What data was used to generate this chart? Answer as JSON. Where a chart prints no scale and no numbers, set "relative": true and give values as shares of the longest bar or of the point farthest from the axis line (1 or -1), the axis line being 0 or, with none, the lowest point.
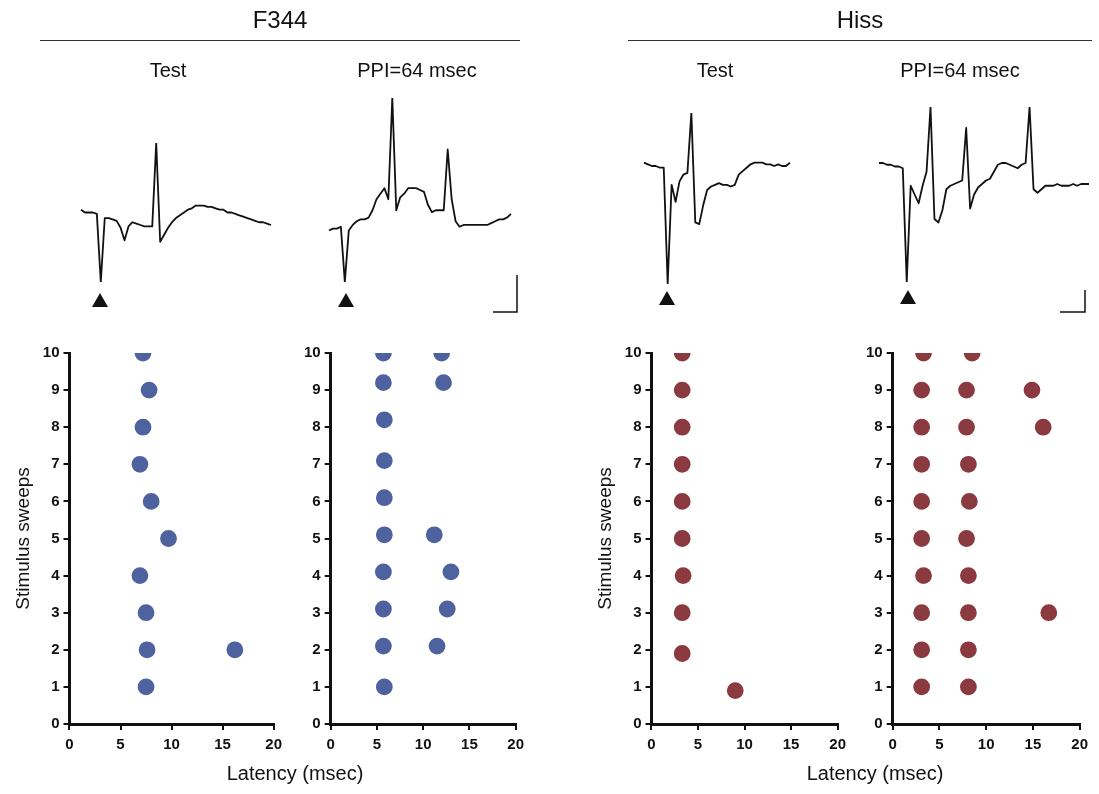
{
  "chart_data": [
    {
      "type": "line",
      "title": "Test",
      "annotations": [
        "F344"
      ],
      "relative": true,
      "marker": "none",
      "color": "#111111",
      "categories": [
        null,
        null,
        null,
        null,
        null,
        null,
        null,
        null,
        null,
        null,
        null,
        null,
        null,
        null,
        null,
        null,
        null,
        null,
        null,
        null,
        null,
        null,
        null,
        null,
        null,
        null,
        null,
        null,
        null,
        null,
        null,
        null,
        null,
        null,
        null,
        null,
        null,
        null,
        null,
        null,
        null,
        null,
        null,
        null,
        null,
        null,
        null,
        null,
        null
      ],
      "values": [
        0.52,
        0.5,
        0.5,
        0.5,
        0.49,
        0,
        0.46,
        0.46,
        0.45,
        0.44,
        0.39,
        0.3,
        0.4,
        0.43,
        0.42,
        0.41,
        0.4,
        0.4,
        0.4,
        1,
        0.29,
        0.34,
        0.39,
        0.43,
        0.46,
        0.48,
        0.5,
        0.52,
        0.53,
        0.55,
        0.55,
        0.55,
        0.54,
        0.54,
        0.53,
        0.52,
        0.52,
        0.5,
        0.5,
        0.49,
        0.48,
        0.47,
        0.46,
        0.45,
        0.44,
        0.43,
        0.43,
        0.42,
        0.41
      ]
    },
    {
      "type": "line",
      "title": "PPI=64 msec",
      "relative": true,
      "marker": "none",
      "color": "#111111",
      "categories": [
        null,
        null,
        null,
        null,
        null,
        null,
        null,
        null,
        null,
        null,
        null,
        null,
        null,
        null,
        null,
        null,
        null,
        null,
        null,
        null,
        null,
        null,
        null,
        null,
        null,
        null,
        null,
        null,
        null,
        null,
        null,
        null,
        null,
        null,
        null,
        null,
        null,
        null,
        null,
        null,
        null,
        null,
        null,
        null,
        null,
        null,
        null
      ],
      "values": [
        0.28,
        0.29,
        0.29,
        0.3,
        0,
        0.28,
        0.31,
        0.33,
        0.34,
        0.34,
        0.35,
        0.39,
        0.45,
        0.48,
        0.51,
        0.45,
        1,
        0.39,
        0.46,
        0.48,
        0.51,
        0.51,
        0.51,
        0.5,
        0.49,
        0.42,
        0.38,
        0.39,
        0.39,
        0.39,
        0.72,
        0.45,
        0.33,
        0.3,
        0.31,
        0.31,
        0.31,
        0.31,
        0.31,
        0.31,
        0.31,
        0.32,
        0.33,
        0.34,
        0.34,
        0.35,
        0.37
      ]
    },
    {
      "type": "line",
      "title": "Test",
      "annotations": [
        "Hiss"
      ],
      "relative": true,
      "marker": "none",
      "color": "#111111",
      "categories": [
        null,
        null,
        null,
        null,
        null,
        null,
        null,
        null,
        null,
        null,
        null,
        null,
        null,
        null,
        null,
        null,
        null,
        null,
        null,
        null,
        null,
        null,
        null,
        null,
        null,
        null,
        null,
        null,
        null,
        null,
        null,
        null,
        null,
        null,
        null,
        null,
        null,
        null
      ],
      "values": [
        0.71,
        0.7,
        0.69,
        0.69,
        0.68,
        0.68,
        0,
        0.58,
        0.48,
        0.6,
        0.64,
        0.65,
        1,
        0.36,
        0.35,
        0.46,
        0.55,
        0.57,
        0.58,
        0.59,
        0.58,
        0.58,
        0.57,
        0.58,
        0.64,
        0.66,
        0.68,
        0.7,
        0.71,
        0.71,
        0.71,
        0.7,
        0.7,
        0.69,
        0.7,
        0.69,
        0.69,
        0.71
      ]
    },
    {
      "type": "line",
      "title": "PPI=64 msec",
      "relative": true,
      "marker": "none",
      "color": "#111111",
      "categories": [
        null,
        null,
        null,
        null,
        null,
        null,
        null,
        null,
        null,
        null,
        null,
        null,
        null,
        null,
        null,
        null,
        null,
        null,
        null,
        null,
        null,
        null,
        null,
        null,
        null,
        null,
        null,
        null,
        null,
        null,
        null,
        null,
        null,
        null,
        null,
        null,
        null,
        null,
        null,
        null,
        null,
        null,
        null,
        null,
        null,
        null,
        null,
        null,
        null,
        null,
        null,
        null,
        null,
        null
      ],
      "values": [
        0.68,
        0.68,
        0.67,
        0.67,
        0.66,
        0.66,
        0.65,
        0,
        0.55,
        0.5,
        0.45,
        0.55,
        0.63,
        1,
        0.36,
        0.34,
        0.41,
        0.53,
        0.55,
        0.56,
        0.57,
        0.58,
        0.88,
        0.42,
        0.5,
        0.54,
        0.56,
        0.58,
        0.59,
        0.63,
        0.67,
        0.68,
        0.68,
        0.67,
        0.66,
        0.65,
        0.67,
        0.68,
        1,
        0.53,
        0.51,
        0.53,
        0.55,
        0.55,
        0.55,
        0.56,
        0.55,
        0.55,
        0.55,
        0.56,
        0.55,
        0.56,
        0.56,
        0.56
      ]
    },
    {
      "type": "scatter",
      "xlabel": "Latency (msec)",
      "ylabel": "Stimulus sweeps",
      "marker": "circle",
      "xlim": [
        0,
        20
      ],
      "xticks": [
        0,
        5,
        10,
        15,
        20
      ],
      "ylim": [
        0,
        10
      ],
      "yticks": [
        0,
        1,
        2,
        3,
        4,
        5,
        6,
        7,
        8,
        9,
        10
      ],
      "color": "#4f62a0",
      "x": [
        7.2,
        7.8,
        7.2,
        6.9,
        8.0,
        9.7,
        6.9,
        7.5,
        7.6,
        16.2,
        7.5
      ],
      "values": [
        10,
        9,
        8,
        7,
        6,
        5,
        4,
        3,
        2,
        2,
        1
      ]
    },
    {
      "type": "scatter",
      "marker": "circle",
      "xlim": [
        0,
        20
      ],
      "xticks": [
        0,
        5,
        10,
        15,
        20
      ],
      "ylim": [
        0,
        10
      ],
      "yticks": [
        0,
        1,
        2,
        3,
        4,
        5,
        6,
        7,
        8,
        9,
        10
      ],
      "color": "#4f62a0",
      "x": [
        5.7,
        12.0,
        5.7,
        12.2,
        5.8,
        5.8,
        5.8,
        5.8,
        11.2,
        5.7,
        13.0,
        5.7,
        12.6,
        5.7,
        11.5,
        5.8
      ],
      "values": [
        10,
        10,
        9.2,
        9.2,
        8.2,
        7.1,
        6.1,
        5.1,
        5.1,
        4.1,
        4.1,
        3.1,
        3.1,
        2.1,
        2.1,
        1.0
      ]
    },
    {
      "type": "scatter",
      "xlabel": "Latency (msec)",
      "ylabel": "Stimulus sweeps",
      "marker": "circle",
      "xlim": [
        0,
        20
      ],
      "xticks": [
        0,
        5,
        10,
        15,
        20
      ],
      "ylim": [
        0,
        10
      ],
      "yticks": [
        0,
        1,
        2,
        3,
        4,
        5,
        6,
        7,
        8,
        9,
        10
      ],
      "color": "#8b3a3f",
      "x": [
        3.3,
        3.3,
        3.3,
        3.3,
        3.3,
        3.3,
        3.4,
        3.3,
        3.3,
        9.0
      ],
      "values": [
        10,
        9,
        8,
        7,
        6,
        5,
        4,
        3,
        1.9,
        0.9
      ]
    },
    {
      "type": "scatter",
      "marker": "circle",
      "xlim": [
        0,
        20
      ],
      "xticks": [
        0,
        5,
        10,
        15,
        20
      ],
      "ylim": [
        0,
        10
      ],
      "yticks": [
        0,
        1,
        2,
        3,
        4,
        5,
        6,
        7,
        8,
        9,
        10
      ],
      "color": "#8b3a3f",
      "x": [
        3.3,
        8.5,
        3.1,
        7.9,
        14.9,
        3.1,
        7.9,
        16.1,
        3.1,
        8.1,
        3.1,
        8.2,
        3.1,
        7.9,
        3.3,
        8.1,
        3.1,
        8.1,
        16.7,
        3.1,
        8.1,
        3.1,
        8.1
      ],
      "values": [
        10,
        10,
        9,
        9,
        9,
        8,
        8,
        8,
        7,
        7,
        6,
        6,
        5,
        5,
        4,
        4,
        3,
        3,
        3,
        2,
        2,
        1,
        1
      ]
    }
  ]
}
